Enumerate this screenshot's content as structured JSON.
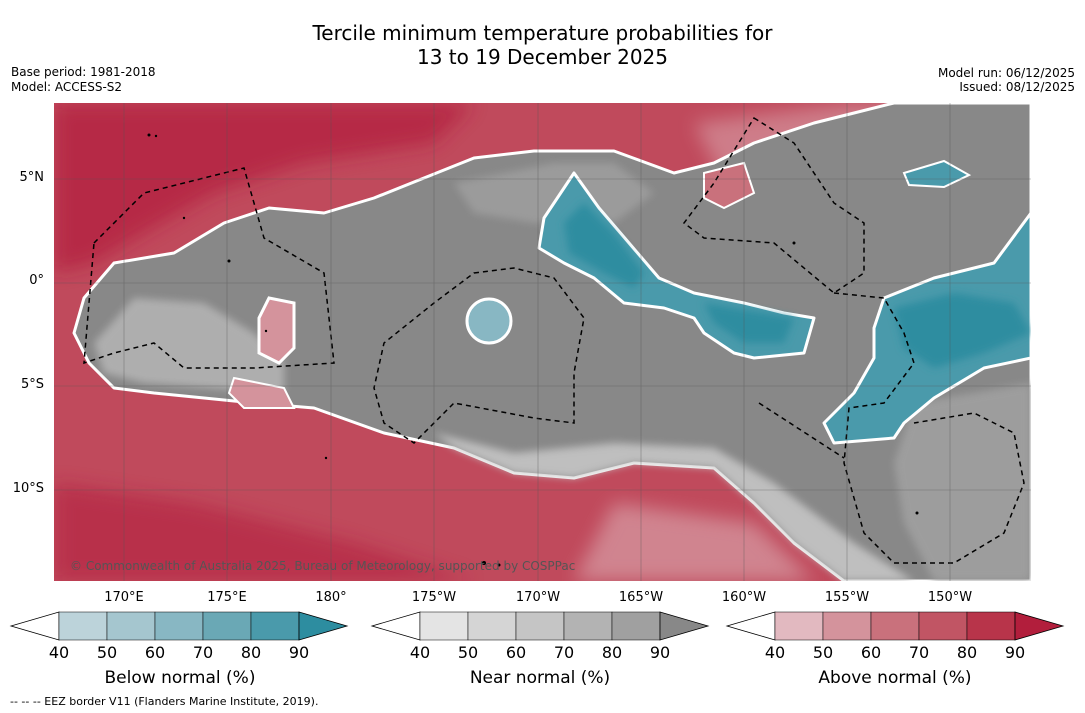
{
  "title": {
    "line1": "Tercile minimum temperature probabilities for",
    "line2": "13 to 19 December 2025"
  },
  "meta": {
    "base_period": "Base period: 1981-2018",
    "model": "Model: ACCESS-S2",
    "model_run": "Model run: 06/12/2025",
    "issued": "Issued: 08/12/2025"
  },
  "map": {
    "lat_labels": [
      "5°N",
      "0°",
      "5°S",
      "10°S"
    ],
    "lon_labels": [
      "170°E",
      "175°E",
      "180°",
      "175°W",
      "170°W",
      "165°W",
      "160°W",
      "155°W",
      "150°W"
    ],
    "copyright": "© Commonwealth of Australia 2025, Bureau of Meteorology, supported by COSPPac"
  },
  "legend": {
    "below": {
      "title": "Below normal (%)",
      "ticks": [
        "40",
        "50",
        "60",
        "70",
        "80",
        "90"
      ],
      "colors": [
        "#ffffff",
        "#bcd3da",
        "#a5c6cf",
        "#88b7c3",
        "#6aa8b5",
        "#4a9aab",
        "#2d8da0"
      ]
    },
    "near": {
      "title": "Near normal (%)",
      "ticks": [
        "40",
        "50",
        "60",
        "70",
        "80",
        "90"
      ],
      "colors": [
        "#ffffff",
        "#e4e4e4",
        "#d5d5d5",
        "#c5c5c5",
        "#b3b3b3",
        "#a0a0a0",
        "#888888"
      ]
    },
    "above": {
      "title": "Above normal (%)",
      "ticks": [
        "40",
        "50",
        "60",
        "70",
        "80",
        "90"
      ],
      "colors": [
        "#ffffff",
        "#e2b9c0",
        "#d4939c",
        "#c9717c",
        "#c15564",
        "#b8344a",
        "#b21e3c"
      ]
    }
  },
  "footnote": "--  --  -- EEZ border V11 (Flanders Marine Institute, 2019)."
}
